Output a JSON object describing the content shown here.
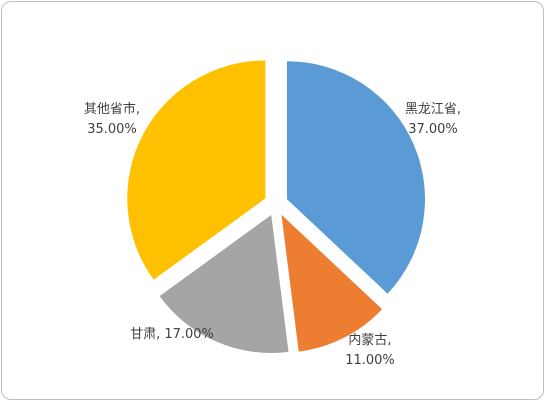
{
  "chart_data": {
    "type": "pie",
    "title": "",
    "slices": [
      {
        "name": "黑龙江省",
        "value": 37.0,
        "color": "#5B9BD5",
        "label_line1": "黑龙江省,",
        "label_line2": "37.00%"
      },
      {
        "name": "内蒙古",
        "value": 11.0,
        "color": "#ED7D31",
        "label_line1": "内蒙古,",
        "label_line2": "11.00%"
      },
      {
        "name": "甘肃",
        "value": 17.0,
        "color": "#A5A5A5",
        "label_line1": "甘肃, 17.00%",
        "label_line2": ""
      },
      {
        "name": "其他省市",
        "value": 35.0,
        "color": "#FFC000",
        "label_line1": "其他省市,",
        "label_line2": "35.00%"
      }
    ],
    "exploded": true,
    "legend": "none"
  }
}
